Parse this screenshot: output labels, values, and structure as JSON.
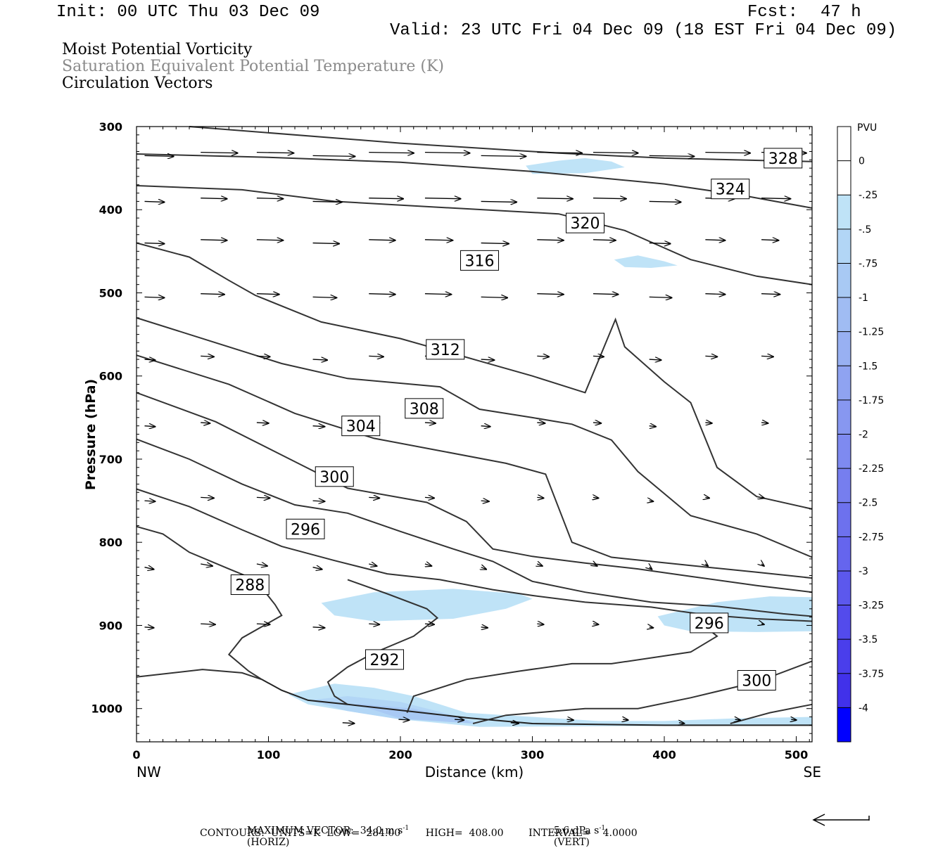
{
  "header": {
    "init": "Init: 00 UTC Thu 03 Dec 09",
    "fcst_label": "Fcst:",
    "fcst_value": "47 h",
    "valid": "Valid: 23 UTC Fri 04 Dec 09 (18 EST Fri 04 Dec 09)"
  },
  "fields": {
    "f1": "Moist Potential Vorticity",
    "f2": "Saturation Equivalent Potential Temperature (K)",
    "f3": "Circulation Vectors"
  },
  "footer": {
    "max_vector": "MAXIMUM VECTOR:  34.0 m s",
    "horiz": "(HORIZ)",
    "vert_val": "5.6 dPa s",
    "vert": "(VERT)",
    "exp": "-1",
    "contours": "CONTOURS:  UNITS=K  LOW=  284.00        HIGH=  408.00        INTERVAL=    4.0000"
  },
  "colors": {
    "pv_fill": "#bfe3f7",
    "pv_fill2": "#a9b8f0",
    "contour": "#333333"
  },
  "chart_data": {
    "type": "cross-section",
    "title": "",
    "xlabel": "Distance (km)",
    "ylabel": "Pressure (hPa)",
    "xlim": [
      0,
      512
    ],
    "ylim": [
      1040,
      300
    ],
    "x_ticks": [
      "0",
      "100",
      "200",
      "300",
      "400",
      "500"
    ],
    "x_tick_values": [
      0,
      100,
      200,
      300,
      400,
      500
    ],
    "y_ticks": [
      "300",
      "400",
      "500",
      "600",
      "700",
      "800",
      "900",
      "1000"
    ],
    "y_tick_values": [
      300,
      400,
      500,
      600,
      700,
      800,
      900,
      1000
    ],
    "x_end_labels": [
      "NW",
      "SE"
    ],
    "colorbar": {
      "label": "PVU",
      "ticks": [
        "0",
        "-.25",
        "-.5",
        "-.75",
        "-1",
        "-1.25",
        "-1.5",
        "-1.75",
        "-2",
        "-2.25",
        "-2.5",
        "-2.75",
        "-3",
        "-3.25",
        "-3.5",
        "-3.75",
        "-4"
      ],
      "colors": [
        "#ffffff",
        "#bfe3f7",
        "#b2d6f6",
        "#a8c9f4",
        "#a0bcf3",
        "#98b0f2",
        "#8fa3f1",
        "#8797f0",
        "#7e8af0",
        "#767eef",
        "#6d71ee",
        "#6565ee",
        "#5c58ed",
        "#534bec",
        "#4a3eeb",
        "#4131ea",
        "#0000ff"
      ]
    },
    "contour_labels": [
      {
        "label": "328",
        "x": 490,
        "p": 338
      },
      {
        "label": "324",
        "x": 450,
        "p": 375
      },
      {
        "label": "320",
        "x": 340,
        "p": 416
      },
      {
        "label": "316",
        "x": 260,
        "p": 461
      },
      {
        "label": "312",
        "x": 234,
        "p": 568
      },
      {
        "label": "308",
        "x": 218,
        "p": 639
      },
      {
        "label": "304",
        "x": 170,
        "p": 660
      },
      {
        "label": "300",
        "x": 150,
        "p": 721
      },
      {
        "label": "296",
        "x": 128,
        "p": 784
      },
      {
        "label": "288",
        "x": 86,
        "p": 851
      },
      {
        "label": "292",
        "x": 188,
        "p": 941
      },
      {
        "label": "296",
        "x": 434,
        "p": 897
      },
      {
        "label": "300",
        "x": 470,
        "p": 966
      }
    ],
    "contours": [
      {
        "label": "328",
        "points": [
          [
            40,
            300
          ],
          [
            200,
            320
          ],
          [
            320,
            332
          ],
          [
            400,
            338
          ],
          [
            480,
            341
          ],
          [
            512,
            342
          ]
        ]
      },
      {
        "label": "324",
        "points": [
          [
            0,
            333
          ],
          [
            100,
            337
          ],
          [
            200,
            343
          ],
          [
            300,
            354
          ],
          [
            400,
            369
          ],
          [
            460,
            383
          ],
          [
            512,
            398
          ]
        ]
      },
      {
        "label": "320",
        "points": [
          [
            0,
            371
          ],
          [
            80,
            376
          ],
          [
            150,
            390
          ],
          [
            240,
            398
          ],
          [
            320,
            405
          ],
          [
            370,
            425
          ],
          [
            420,
            460
          ],
          [
            470,
            480
          ],
          [
            512,
            490
          ]
        ]
      },
      {
        "label": "316",
        "points": [
          [
            0,
            440
          ],
          [
            40,
            457
          ],
          [
            70,
            485
          ],
          [
            90,
            503
          ],
          [
            140,
            535
          ],
          [
            200,
            555
          ],
          [
            260,
            582
          ],
          [
            300,
            600
          ],
          [
            340,
            620
          ],
          [
            363,
            532
          ],
          [
            370,
            565
          ],
          [
            400,
            607
          ],
          [
            420,
            632
          ],
          [
            440,
            710
          ],
          [
            470,
            745
          ],
          [
            512,
            760
          ]
        ]
      },
      {
        "label": "312",
        "points": [
          [
            0,
            530
          ],
          [
            60,
            560
          ],
          [
            110,
            585
          ],
          [
            160,
            603
          ],
          [
            230,
            613
          ],
          [
            260,
            640
          ],
          [
            300,
            650
          ],
          [
            330,
            658
          ],
          [
            360,
            677
          ],
          [
            380,
            715
          ],
          [
            420,
            768
          ],
          [
            470,
            790
          ],
          [
            512,
            818
          ]
        ]
      },
      {
        "label": "308",
        "points": [
          [
            0,
            575
          ],
          [
            70,
            610
          ],
          [
            120,
            645
          ],
          [
            180,
            675
          ],
          [
            230,
            690
          ],
          [
            280,
            705
          ],
          [
            310,
            718
          ],
          [
            330,
            800
          ],
          [
            360,
            818
          ],
          [
            420,
            828
          ],
          [
            470,
            836
          ],
          [
            512,
            843
          ]
        ]
      },
      {
        "label": "304",
        "points": [
          [
            0,
            620
          ],
          [
            60,
            655
          ],
          [
            110,
            695
          ],
          [
            160,
            735
          ],
          [
            220,
            752
          ],
          [
            250,
            775
          ],
          [
            270,
            808
          ],
          [
            300,
            817
          ],
          [
            340,
            825
          ],
          [
            380,
            832
          ],
          [
            420,
            841
          ],
          [
            470,
            852
          ],
          [
            512,
            860
          ]
        ]
      },
      {
        "label": "300",
        "points": [
          [
            0,
            676
          ],
          [
            40,
            700
          ],
          [
            80,
            730
          ],
          [
            120,
            755
          ],
          [
            160,
            765
          ],
          [
            200,
            787
          ],
          [
            240,
            808
          ],
          [
            270,
            823
          ],
          [
            300,
            847
          ],
          [
            340,
            860
          ],
          [
            390,
            872
          ],
          [
            440,
            877
          ],
          [
            490,
            886
          ],
          [
            512,
            889
          ]
        ]
      },
      {
        "label": "296",
        "points": [
          [
            0,
            736
          ],
          [
            40,
            757
          ],
          [
            80,
            785
          ],
          [
            110,
            805
          ],
          [
            150,
            822
          ],
          [
            190,
            838
          ],
          [
            230,
            845
          ],
          [
            270,
            857
          ],
          [
            300,
            864
          ],
          [
            340,
            872
          ],
          [
            390,
            878
          ],
          [
            430,
            887
          ],
          [
            470,
            892
          ],
          [
            512,
            895
          ]
        ]
      },
      {
        "label": "288",
        "points": [
          [
            0,
            781
          ],
          [
            20,
            790
          ],
          [
            40,
            812
          ],
          [
            70,
            832
          ],
          [
            90,
            845
          ],
          [
            105,
            875
          ],
          [
            110,
            888
          ],
          [
            80,
            915
          ],
          [
            70,
            935
          ],
          [
            85,
            955
          ],
          [
            95,
            965
          ]
        ]
      },
      {
        "label": "292",
        "points": [
          [
            160,
            845
          ],
          [
            190,
            862
          ],
          [
            220,
            880
          ],
          [
            228,
            891
          ],
          [
            210,
            913
          ],
          [
            180,
            933
          ],
          [
            160,
            950
          ],
          [
            145,
            968
          ],
          [
            150,
            985
          ],
          [
            160,
            995
          ]
        ]
      },
      {
        "label": "296",
        "points": [
          [
            205,
            1005
          ],
          [
            210,
            985
          ],
          [
            250,
            965
          ],
          [
            290,
            955
          ],
          [
            330,
            946
          ],
          [
            360,
            946
          ],
          [
            420,
            932
          ],
          [
            440,
            913
          ],
          [
            430,
            900
          ]
        ]
      },
      {
        "label": "300",
        "points": [
          [
            255,
            1018
          ],
          [
            280,
            1008
          ],
          [
            340,
            1000
          ],
          [
            380,
            1000
          ],
          [
            420,
            987
          ],
          [
            470,
            968
          ],
          [
            512,
            943
          ]
        ]
      },
      {
        "label": "",
        "points": [
          [
            450,
            1018
          ],
          [
            480,
            1005
          ],
          [
            512,
            995
          ]
        ]
      },
      {
        "label": "",
        "points": [
          [
            0,
            962
          ],
          [
            50,
            953
          ],
          [
            80,
            957
          ],
          [
            95,
            965
          ]
        ]
      }
    ],
    "pv_regions": [
      {
        "value": -0.25,
        "points": [
          [
            295,
            347
          ],
          [
            320,
            341
          ],
          [
            340,
            338
          ],
          [
            360,
            342
          ],
          [
            370,
            349
          ],
          [
            340,
            356
          ],
          [
            300,
            357
          ]
        ]
      },
      {
        "value": -0.25,
        "points": [
          [
            362,
            460
          ],
          [
            380,
            455
          ],
          [
            400,
            462
          ],
          [
            410,
            467
          ],
          [
            390,
            470
          ],
          [
            370,
            469
          ]
        ]
      },
      {
        "value": -0.25,
        "points": [
          [
            140,
            873
          ],
          [
            180,
            860
          ],
          [
            240,
            856
          ],
          [
            290,
            862
          ],
          [
            300,
            868
          ],
          [
            280,
            880
          ],
          [
            240,
            892
          ],
          [
            180,
            895
          ],
          [
            150,
            888
          ]
        ]
      },
      {
        "value": -0.25,
        "points": [
          [
            395,
            889
          ],
          [
            440,
            872
          ],
          [
            480,
            865
          ],
          [
            512,
            866
          ],
          [
            512,
            907
          ],
          [
            470,
            908
          ],
          [
            420,
            907
          ],
          [
            400,
            900
          ]
        ]
      },
      {
        "value": -0.25,
        "points": [
          [
            115,
            983
          ],
          [
            150,
            970
          ],
          [
            180,
            975
          ],
          [
            210,
            985
          ],
          [
            250,
            1005
          ],
          [
            300,
            1010
          ],
          [
            350,
            1015
          ],
          [
            400,
            1015
          ],
          [
            450,
            1012
          ],
          [
            512,
            1010
          ],
          [
            512,
            1020
          ],
          [
            260,
            1022
          ],
          [
            200,
            1013
          ],
          [
            160,
            1003
          ],
          [
            130,
            995
          ]
        ]
      },
      {
        "value": -0.5,
        "points": [
          [
            130,
            990
          ],
          [
            160,
            985
          ],
          [
            200,
            992
          ],
          [
            240,
            1008
          ],
          [
            260,
            1018
          ],
          [
            200,
            1013
          ],
          [
            160,
            1003
          ]
        ]
      },
      {
        "value": -0.75,
        "points": [
          [
            165,
            994
          ],
          [
            210,
            1000
          ],
          [
            250,
            1014
          ],
          [
            255,
            1018
          ],
          [
            200,
            1012
          ]
        ]
      }
    ],
    "terrain": {
      "points": [
        [
          95,
          965
        ],
        [
          110,
          978
        ],
        [
          130,
          990
        ],
        [
          160,
          995
        ],
        [
          200,
          1002
        ],
        [
          250,
          1011
        ],
        [
          300,
          1018
        ],
        [
          400,
          1020
        ],
        [
          512,
          1020
        ]
      ]
    },
    "vector_rows": [
      {
        "p": 333,
        "x_start": 0,
        "x_step": 42.5,
        "count": 12
      },
      {
        "p": 388,
        "x_start": 0,
        "x_step": 42.5,
        "count": 12
      },
      {
        "p": 438,
        "x_start": 0,
        "x_step": 42.5,
        "count": 12
      },
      {
        "p": 503,
        "x_start": 0,
        "x_step": 42.5,
        "count": 12
      },
      {
        "p": 578,
        "x_start": 0,
        "x_step": 42.5,
        "count": 12
      },
      {
        "p": 658,
        "x_start": 0,
        "x_step": 42.5,
        "count": 12
      },
      {
        "p": 748,
        "x_start": 0,
        "x_step": 42.5,
        "count": 12
      },
      {
        "p": 828,
        "x_start": 0,
        "x_step": 42.5,
        "count": 12
      },
      {
        "p": 900,
        "x_start": 0,
        "x_step": 42.5,
        "count": 12
      },
      {
        "p": 1015,
        "x_start": 150,
        "x_step": 42.5,
        "count": 9
      }
    ],
    "vector_lengths_km": [
      [
        22,
        28,
        28,
        32,
        34,
        34,
        34,
        34,
        34,
        34,
        34,
        34
      ],
      [
        15,
        20,
        20,
        22,
        26,
        27,
        27,
        27,
        25,
        24,
        22,
        22
      ],
      [
        15,
        20,
        20,
        20,
        20,
        21,
        21,
        20,
        17,
        16,
        15,
        13
      ],
      [
        15,
        18,
        17,
        18,
        20,
        20,
        20,
        20,
        19,
        17,
        15,
        14
      ],
      [
        8,
        10,
        10,
        11,
        11,
        10,
        10,
        9,
        8,
        9,
        9,
        9
      ],
      [
        8,
        7,
        9,
        9,
        8,
        8,
        7,
        6,
        6,
        5,
        5,
        5
      ],
      [
        8,
        10,
        10,
        9,
        8,
        7,
        6,
        5,
        4,
        3,
        3,
        2
      ],
      [
        7,
        9,
        8,
        7,
        6,
        5,
        4,
        4,
        3,
        2,
        2,
        2
      ],
      [
        7,
        11,
        10,
        9,
        8,
        7,
        5,
        5,
        4,
        3,
        2,
        2
      ],
      [
        9,
        8,
        7,
        6,
        5,
        4,
        4,
        4,
        4
      ]
    ]
  }
}
